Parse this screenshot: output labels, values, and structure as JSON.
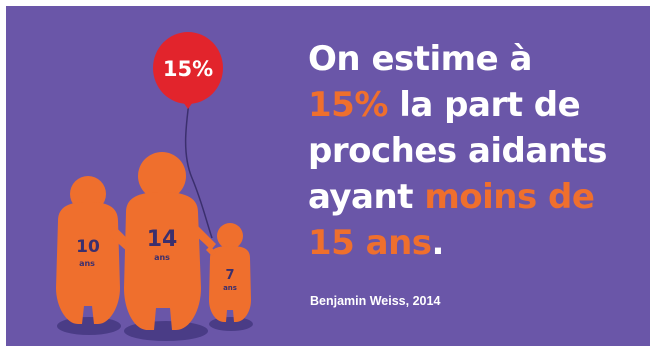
{
  "balloon": {
    "label": "15%"
  },
  "figures": [
    {
      "age": "10",
      "unit": "ans"
    },
    {
      "age": "14",
      "unit": "ans"
    },
    {
      "age": "7",
      "unit": "ans"
    }
  ],
  "headline": {
    "part1": "On estime à",
    "highlight1": "15%",
    "part2": "la part de",
    "part3": "proches aidants",
    "part4": "ayant",
    "highlight2": "moins de",
    "highlight3": "15 ans",
    "punctuation": "."
  },
  "credit": "Benjamin Weiss, 2014",
  "colors": {
    "background": "#6a56a8",
    "accent": "#ef6f2d",
    "balloon": "#e2242c",
    "text": "#ffffff"
  }
}
